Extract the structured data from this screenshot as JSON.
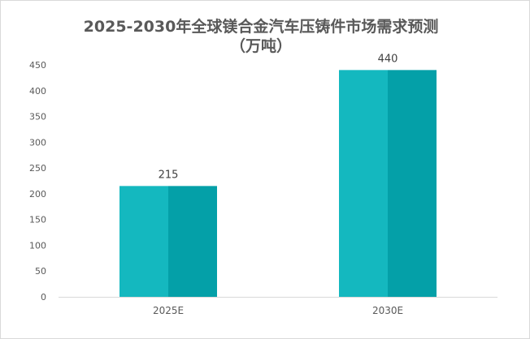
{
  "chart_data": {
    "type": "bar",
    "title_line1": "2025-2030年全球镁合金汽车压铸件市场需求预测",
    "title_line2": "（万吨）",
    "categories": [
      "2025E",
      "2030E"
    ],
    "values": [
      215,
      440
    ],
    "data_labels": [
      "215",
      "440"
    ],
    "ylim": [
      0,
      450
    ],
    "y_ticks": [
      0,
      50,
      100,
      150,
      200,
      250,
      300,
      350,
      400,
      450
    ],
    "grid": false,
    "legend": "none",
    "colors": {
      "bar_light": "#14b8bf",
      "bar_dark": "#04a0a8",
      "axis": "#d9d9d9",
      "text": "#595959"
    }
  }
}
